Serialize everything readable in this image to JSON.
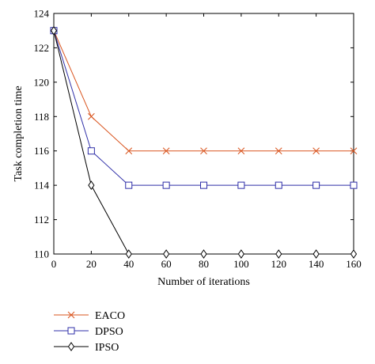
{
  "chart_data": {
    "type": "line",
    "title": "",
    "xlabel": "Number of iterations",
    "ylabel": "Task completion time",
    "x": [
      0,
      20,
      40,
      60,
      80,
      100,
      120,
      140,
      160
    ],
    "xlim": [
      0,
      160
    ],
    "ylim": [
      110,
      124
    ],
    "xticks": [
      0,
      20,
      40,
      60,
      80,
      100,
      120,
      140,
      160
    ],
    "yticks": [
      110,
      112,
      114,
      116,
      118,
      120,
      122,
      124
    ],
    "grid": false,
    "legend_position": "bottom-left, below plot",
    "series": [
      {
        "name": "EACO",
        "color": "#d9541e",
        "marker": "x",
        "values": [
          123,
          118,
          116,
          116,
          116,
          116,
          116,
          116,
          116
        ]
      },
      {
        "name": "DPSO",
        "color": "#2f2fa8",
        "marker": "square",
        "values": [
          123,
          116,
          114,
          114,
          114,
          114,
          114,
          114,
          114
        ]
      },
      {
        "name": "IPSO",
        "color": "#000000",
        "marker": "diamond",
        "values": [
          123,
          114,
          110,
          110,
          110,
          110,
          110,
          110,
          110
        ]
      }
    ]
  }
}
